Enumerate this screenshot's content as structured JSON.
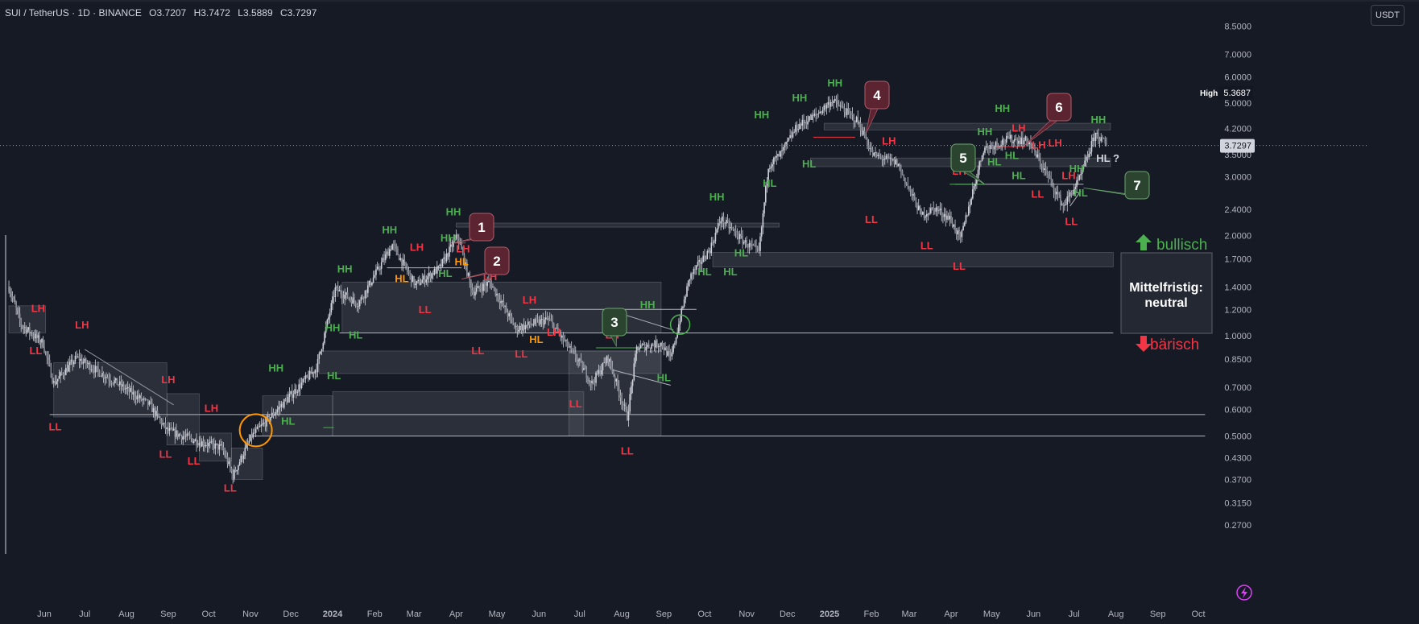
{
  "header": {
    "symbol": "SUI / TetherUS · 1D · BINANCE",
    "open": "O3.7207",
    "high": "H3.7472",
    "low": "L3.5889",
    "close": "C3.7297"
  },
  "currency_button": "USDT",
  "colors": {
    "bg": "#161a25",
    "green": "#4caf50",
    "red": "#f23645",
    "orange": "#ff9800",
    "white": "#d1d4dc",
    "candle": "#cfd2da",
    "axis": "#b2b5be",
    "box": "rgba(120,123,134,0.22)"
  },
  "chart_data": {
    "type": "candlestick",
    "y_scale": "log",
    "ylim": [
      0.24,
      8.6
    ],
    "y_ticks": [
      "0.2700",
      "0.3150",
      "0.3700",
      "0.4300",
      "0.5000",
      "0.6000",
      "0.7000",
      "0.8500",
      "1.0000",
      "1.2000",
      "1.4000",
      "1.7000",
      "2.0000",
      "2.4000",
      "3.0000",
      "3.5000",
      "4.2000",
      "5.0000",
      "6.0000",
      "7.0000",
      "8.5000"
    ],
    "x_ticks": [
      "Jun",
      "Jul",
      "Aug",
      "Sep",
      "Oct",
      "Nov",
      "Dec",
      "2024",
      "Feb",
      "Mar",
      "Apr",
      "May",
      "Jun",
      "Jul",
      "Aug",
      "Sep",
      "Oct",
      "Nov",
      "Dec",
      "2025",
      "Feb",
      "Mar",
      "Apr",
      "May",
      "Jun",
      "Jul",
      "Aug",
      "Sep",
      "Oct"
    ],
    "price_path": [
      [
        "2023-05-03",
        1.4
      ],
      [
        "2023-05-13",
        1.08
      ],
      [
        "2023-05-31",
        0.95
      ],
      [
        "2023-06-08",
        0.72
      ],
      [
        "2023-06-25",
        0.86
      ],
      [
        "2023-07-25",
        0.72
      ],
      [
        "2023-08-18",
        0.62
      ],
      [
        "2023-08-31",
        0.52
      ],
      [
        "2023-09-24",
        0.48
      ],
      [
        "2023-10-11",
        0.46
      ],
      [
        "2023-10-19",
        0.38
      ],
      [
        "2023-11-02",
        0.5
      ],
      [
        "2023-11-14",
        0.56
      ],
      [
        "2023-12-02",
        0.67
      ],
      [
        "2023-12-20",
        0.8
      ],
      [
        "2024-01-03",
        1.38
      ],
      [
        "2024-01-20",
        1.25
      ],
      [
        "2024-02-14",
        1.88
      ],
      [
        "2024-03-02",
        1.42
      ],
      [
        "2024-03-20",
        1.6
      ],
      [
        "2024-04-02",
        2.0
      ],
      [
        "2024-04-13",
        1.35
      ],
      [
        "2024-04-26",
        1.45
      ],
      [
        "2024-05-15",
        1.05
      ],
      [
        "2024-06-08",
        1.12
      ],
      [
        "2024-06-30",
        0.84
      ],
      [
        "2024-07-10",
        0.72
      ],
      [
        "2024-07-22",
        0.86
      ],
      [
        "2024-08-05",
        0.57
      ],
      [
        "2024-08-12",
        0.92
      ],
      [
        "2024-08-30",
        0.95
      ],
      [
        "2024-09-06",
        0.85
      ],
      [
        "2024-09-20",
        1.5
      ],
      [
        "2024-10-05",
        1.82
      ],
      [
        "2024-10-13",
        2.25
      ],
      [
        "2024-10-31",
        1.9
      ],
      [
        "2024-11-10",
        1.78
      ],
      [
        "2024-11-17",
        3.25
      ],
      [
        "2024-11-26",
        3.5
      ],
      [
        "2024-12-08",
        4.25
      ],
      [
        "2024-12-22",
        4.6
      ],
      [
        "2025-01-03",
        5.1
      ],
      [
        "2025-01-22",
        4.4
      ],
      [
        "2025-02-02",
        3.5
      ],
      [
        "2025-02-20",
        3.3
      ],
      [
        "2025-03-10",
        2.3
      ],
      [
        "2025-03-20",
        2.42
      ],
      [
        "2025-03-31",
        2.25
      ],
      [
        "2025-04-08",
        1.95
      ],
      [
        "2025-04-25",
        3.65
      ],
      [
        "2025-05-14",
        3.9
      ],
      [
        "2025-05-28",
        3.85
      ],
      [
        "2025-06-12",
        3.0
      ],
      [
        "2025-06-23",
        2.45
      ],
      [
        "2025-07-05",
        2.95
      ],
      [
        "2025-07-17",
        4.05
      ],
      [
        "2025-07-25",
        3.73
      ]
    ],
    "last_price": "3.7297",
    "high_label": "High",
    "high_value": "5.3687",
    "swing_labels": [
      {
        "t": "LH",
        "d": "2023-05-27",
        "p": 1.18,
        "c": "red"
      },
      {
        "t": "LL",
        "d": "2023-05-25",
        "p": 0.88,
        "c": "red"
      },
      {
        "t": "LH",
        "d": "2023-06-29",
        "p": 1.05,
        "c": "red"
      },
      {
        "t": "LL",
        "d": "2023-06-09",
        "p": 0.52,
        "c": "red"
      },
      {
        "t": "LH",
        "d": "2023-09-01",
        "p": 0.72,
        "c": "red"
      },
      {
        "t": "LL",
        "d": "2023-08-30",
        "p": 0.43,
        "c": "red"
      },
      {
        "t": "LH",
        "d": "2023-10-03",
        "p": 0.59,
        "c": "red"
      },
      {
        "t": "LL",
        "d": "2023-09-20",
        "p": 0.41,
        "c": "red"
      },
      {
        "t": "LL",
        "d": "2023-10-17",
        "p": 0.34,
        "c": "red"
      },
      {
        "t": "HH",
        "d": "2023-11-20",
        "p": 0.78,
        "c": "green"
      },
      {
        "t": "HL",
        "d": "2023-11-29",
        "p": 0.54,
        "c": "green"
      },
      {
        "t": "HH",
        "d": "2024-01-01",
        "p": 1.03,
        "c": "green"
      },
      {
        "t": "HL",
        "d": "2024-01-18",
        "p": 0.98,
        "c": "green"
      },
      {
        "t": "HL",
        "d": "2024-01-02",
        "p": 0.74,
        "c": "green"
      },
      {
        "t": "HH",
        "d": "2024-01-10",
        "p": 1.55,
        "c": "green"
      },
      {
        "t": "HH",
        "d": "2024-02-12",
        "p": 2.03,
        "c": "green"
      },
      {
        "t": "HL",
        "d": "2024-02-21",
        "p": 1.45,
        "c": "orange"
      },
      {
        "t": "LH",
        "d": "2024-03-03",
        "p": 1.8,
        "c": "red"
      },
      {
        "t": "LL",
        "d": "2024-03-09",
        "p": 1.17,
        "c": "red"
      },
      {
        "t": "HH",
        "d": "2024-03-26",
        "p": 1.92,
        "c": "green"
      },
      {
        "t": "HL",
        "d": "2024-03-24",
        "p": 1.5,
        "c": "green"
      },
      {
        "t": "HH",
        "d": "2024-03-30",
        "p": 2.3,
        "c": "green"
      },
      {
        "t": "LH",
        "d": "2024-04-06",
        "p": 1.78,
        "c": "red"
      },
      {
        "t": "HL",
        "d": "2024-04-05",
        "p": 1.63,
        "c": "orange"
      },
      {
        "t": "LH",
        "d": "2024-04-26",
        "p": 1.47,
        "c": "red"
      },
      {
        "t": "LL",
        "d": "2024-04-17",
        "p": 0.88,
        "c": "red"
      },
      {
        "t": "LH",
        "d": "2024-05-25",
        "p": 1.25,
        "c": "red"
      },
      {
        "t": "LL",
        "d": "2024-05-19",
        "p": 0.86,
        "c": "red"
      },
      {
        "t": "HL",
        "d": "2024-05-30",
        "p": 0.95,
        "c": "orange"
      },
      {
        "t": "LH",
        "d": "2024-06-12",
        "p": 1.0,
        "c": "red"
      },
      {
        "t": "LL",
        "d": "2024-06-28",
        "p": 0.61,
        "c": "red"
      },
      {
        "t": "LH",
        "d": "2024-07-25",
        "p": 0.98,
        "c": "red"
      },
      {
        "t": "LL",
        "d": "2024-08-05",
        "p": 0.44,
        "c": "red"
      },
      {
        "t": "HH",
        "d": "2024-08-20",
        "p": 1.21,
        "c": "green"
      },
      {
        "t": "HL",
        "d": "2024-09-01",
        "p": 0.73,
        "c": "green"
      },
      {
        "t": "HH",
        "d": "2024-10-10",
        "p": 2.55,
        "c": "green"
      },
      {
        "t": "HL",
        "d": "2024-10-01",
        "p": 1.52,
        "c": "green"
      },
      {
        "t": "HL",
        "d": "2024-10-20",
        "p": 1.52,
        "c": "green"
      },
      {
        "t": "HL",
        "d": "2024-10-28",
        "p": 1.73,
        "c": "green"
      },
      {
        "t": "HH",
        "d": "2024-11-12",
        "p": 4.5,
        "c": "green"
      },
      {
        "t": "HL",
        "d": "2024-11-18",
        "p": 2.8,
        "c": "green"
      },
      {
        "t": "HH",
        "d": "2024-12-10",
        "p": 5.05,
        "c": "green"
      },
      {
        "t": "HL",
        "d": "2024-12-17",
        "p": 3.2,
        "c": "green"
      },
      {
        "t": "HH",
        "d": "2025-01-05",
        "p": 5.6,
        "c": "green"
      },
      {
        "t": "LL",
        "d": "2025-02-01",
        "p": 2.18,
        "c": "red"
      },
      {
        "t": "LH",
        "d": "2025-02-14",
        "p": 3.75,
        "c": "red"
      },
      {
        "t": "LL",
        "d": "2025-03-14",
        "p": 1.82,
        "c": "red"
      },
      {
        "t": "LH",
        "d": "2025-04-07",
        "p": 3.05,
        "c": "red"
      },
      {
        "t": "LL",
        "d": "2025-04-07",
        "p": 1.58,
        "c": "red"
      },
      {
        "t": "HH",
        "d": "2025-04-26",
        "p": 4.0,
        "c": "green"
      },
      {
        "t": "HL",
        "d": "2025-05-03",
        "p": 3.25,
        "c": "green"
      },
      {
        "t": "HH",
        "d": "2025-05-09",
        "p": 4.7,
        "c": "green"
      },
      {
        "t": "LH",
        "d": "2025-05-21",
        "p": 4.1,
        "c": "red"
      },
      {
        "t": "HL",
        "d": "2025-05-16",
        "p": 3.4,
        "c": "green"
      },
      {
        "t": "HL",
        "d": "2025-05-21",
        "p": 2.95,
        "c": "green"
      },
      {
        "t": "LH",
        "d": "2025-06-05",
        "p": 3.65,
        "c": "red"
      },
      {
        "t": "LH",
        "d": "2025-06-17",
        "p": 3.7,
        "c": "red"
      },
      {
        "t": "LL",
        "d": "2025-06-04",
        "p": 2.6,
        "c": "red"
      },
      {
        "t": "LH",
        "d": "2025-06-27",
        "p": 2.95,
        "c": "red"
      },
      {
        "t": "LL",
        "d": "2025-06-29",
        "p": 2.15,
        "c": "red"
      },
      {
        "t": "HH",
        "d": "2025-07-03",
        "p": 3.1,
        "c": "green"
      },
      {
        "t": "HL",
        "d": "2025-07-06",
        "p": 2.62,
        "c": "green"
      },
      {
        "t": "HH",
        "d": "2025-07-19",
        "p": 4.35,
        "c": "green"
      },
      {
        "t": "HL ?",
        "d": "2025-07-26",
        "p": 3.33,
        "c": "white"
      }
    ],
    "callouts": [
      {
        "n": "1",
        "style": "red"
      },
      {
        "n": "2",
        "style": "red"
      },
      {
        "n": "3",
        "style": "green"
      },
      {
        "n": "4",
        "style": "red"
      },
      {
        "n": "5",
        "style": "green"
      },
      {
        "n": "6",
        "style": "red"
      },
      {
        "n": "7",
        "style": "green"
      }
    ],
    "zone_panel": {
      "up": "bullisch",
      "label": "Mittelfristig: neutral",
      "down": "bärisch"
    }
  }
}
